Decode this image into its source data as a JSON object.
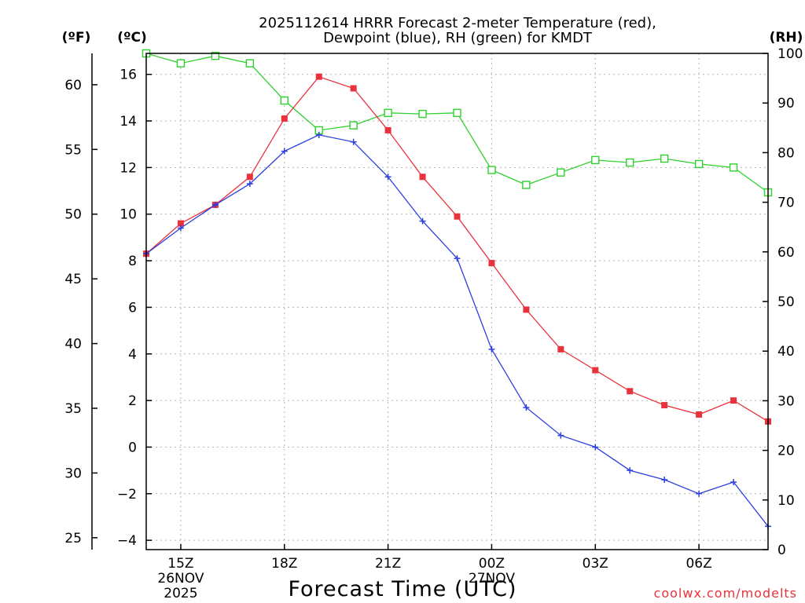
{
  "chart_data": {
    "type": "line",
    "title_lines": [
      "2025112614 HRRR Forecast 2-meter Temperature (red),",
      "Dewpoint (blue), RH (green) for KMDT"
    ],
    "xlabel": "Forecast Time (UTC)",
    "credit": "coolwx.com/modelts",
    "units": {
      "fahrenheit": "(ºF)",
      "celsius": "(ºC)",
      "rh": "(RH)"
    },
    "x_hours": [
      14,
      15,
      16,
      17,
      18,
      19,
      20,
      21,
      22,
      23,
      24,
      25,
      26,
      27,
      28,
      29,
      30,
      31,
      32
    ],
    "xlim": [
      14,
      32
    ],
    "x_ticks": [
      {
        "hour": 15,
        "lines": [
          "15Z",
          "26NOV",
          "2025"
        ]
      },
      {
        "hour": 18,
        "lines": [
          "18Z"
        ]
      },
      {
        "hour": 21,
        "lines": [
          "21Z"
        ]
      },
      {
        "hour": 24,
        "lines": [
          "00Z",
          "27NOV"
        ]
      },
      {
        "hour": 27,
        "lines": [
          "03Z"
        ]
      },
      {
        "hour": 30,
        "lines": [
          "06Z"
        ]
      }
    ],
    "celsius_axis": {
      "ylim": [
        -4.4,
        16.9
      ],
      "ticks": [
        -4,
        -2,
        0,
        2,
        4,
        6,
        8,
        10,
        12,
        14,
        16
      ],
      "labels": [
        "−4",
        "−2",
        "0",
        "2",
        "4",
        "6",
        "8",
        "10",
        "12",
        "14",
        "16"
      ]
    },
    "fahrenheit_axis": {
      "ticks": [
        25,
        30,
        35,
        40,
        45,
        50,
        55,
        60
      ],
      "labels": [
        "25",
        "30",
        "35",
        "40",
        "45",
        "50",
        "55",
        "60"
      ]
    },
    "rh_axis": {
      "ylim": [
        0,
        100
      ],
      "ticks": [
        0,
        10,
        20,
        30,
        40,
        50,
        60,
        70,
        80,
        90,
        100
      ],
      "labels": [
        "0",
        "10",
        "20",
        "30",
        "40",
        "50",
        "60",
        "70",
        "80",
        "90",
        "100"
      ]
    },
    "series": [
      {
        "name": "Temperature",
        "axis": "celsius",
        "color": "#e8323c",
        "marker": "filled-square",
        "values": [
          8.3,
          9.6,
          10.4,
          11.6,
          14.1,
          15.9,
          15.4,
          13.6,
          11.6,
          9.9,
          7.9,
          5.9,
          4.2,
          3.3,
          2.4,
          1.8,
          1.4,
          2.0,
          1.1
        ]
      },
      {
        "name": "Dewpoint",
        "axis": "celsius",
        "color": "#2c3fe0",
        "marker": "plus",
        "values": [
          8.3,
          9.4,
          10.4,
          11.3,
          12.7,
          13.4,
          13.1,
          11.6,
          9.7,
          8.1,
          4.2,
          1.7,
          0.5,
          0.0,
          -1.0,
          -1.4,
          -2.0,
          -1.5,
          -3.4
        ]
      },
      {
        "name": "RH",
        "axis": "rh",
        "color": "#2ed12e",
        "marker": "open-square",
        "values": [
          100,
          98,
          99.5,
          98,
          90.5,
          84.5,
          85.5,
          88,
          87.8,
          88,
          76.5,
          73.5,
          76,
          78.5,
          78,
          78.8,
          77.7,
          77,
          72
        ]
      }
    ]
  }
}
